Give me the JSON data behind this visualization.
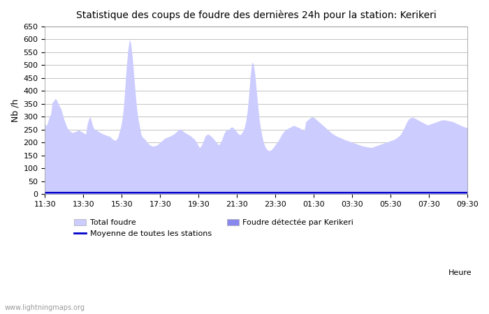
{
  "title": "Statistique des coups de foudre des dernières 24h pour la station: Kerikeri",
  "ylabel": "Nb /h",
  "xlabel": "Heure",
  "watermark": "www.lightningmaps.org",
  "ylim": [
    0,
    650
  ],
  "yticks": [
    0,
    50,
    100,
    150,
    200,
    250,
    300,
    350,
    400,
    450,
    500,
    550,
    600,
    650
  ],
  "x_labels": [
    "11:30",
    "13:30",
    "15:30",
    "17:30",
    "19:30",
    "21:30",
    "23:30",
    "01:30",
    "03:30",
    "05:30",
    "07:30",
    "09:30"
  ],
  "legend_total": "Total foudre",
  "legend_kerikeri": "Foudre détectée par Kerikeri",
  "legend_moyenne": "Moyenne de toutes les stations",
  "color_total": "#ccccff",
  "color_kerikeri": "#8888ee",
  "color_moyenne": "#0000cc",
  "background_color": "#ffffff",
  "grid_color": "#aaaaaa",
  "total_foudre": [
    270,
    265,
    280,
    300,
    310,
    355,
    360,
    370,
    365,
    350,
    340,
    330,
    310,
    290,
    275,
    260,
    250,
    245,
    240,
    238,
    240,
    242,
    245,
    248,
    245,
    242,
    238,
    235,
    232,
    270,
    290,
    300,
    280,
    260,
    250,
    248,
    245,
    242,
    238,
    235,
    232,
    230,
    228,
    225,
    225,
    220,
    215,
    210,
    208,
    210,
    220,
    240,
    260,
    290,
    340,
    420,
    500,
    560,
    600,
    580,
    530,
    460,
    390,
    330,
    290,
    260,
    230,
    220,
    215,
    210,
    200,
    195,
    190,
    188,
    185,
    186,
    188,
    190,
    195,
    200,
    205,
    210,
    215,
    218,
    220,
    222,
    225,
    228,
    230,
    235,
    240,
    245,
    250,
    252,
    248,
    242,
    238,
    235,
    232,
    228,
    225,
    220,
    215,
    210,
    200,
    190,
    180,
    185,
    195,
    210,
    225,
    230,
    232,
    228,
    224,
    218,
    212,
    205,
    198,
    190,
    195,
    205,
    220,
    235,
    245,
    248,
    250,
    255,
    260,
    258,
    252,
    245,
    238,
    232,
    230,
    235,
    245,
    260,
    285,
    325,
    390,
    460,
    510,
    505,
    470,
    410,
    350,
    295,
    255,
    225,
    200,
    185,
    175,
    170,
    168,
    170,
    175,
    182,
    190,
    198,
    205,
    215,
    225,
    235,
    242,
    248,
    252,
    255,
    258,
    260,
    265,
    265,
    263,
    260,
    258,
    255,
    252,
    248,
    245,
    280,
    285,
    290,
    295,
    298,
    298,
    295,
    290,
    285,
    280,
    275,
    270,
    265,
    260,
    255,
    250,
    245,
    240,
    235,
    232,
    228,
    225,
    222,
    220,
    218,
    215,
    212,
    210,
    208,
    206,
    204,
    202,
    200,
    198,
    196,
    194,
    192,
    190,
    188,
    186,
    185,
    184,
    183,
    182,
    181,
    180,
    182,
    184,
    186,
    188,
    190,
    192,
    194,
    196,
    198,
    200,
    202,
    204,
    206,
    208,
    210,
    213,
    216,
    220,
    225,
    230,
    240,
    250,
    262,
    275,
    285,
    292,
    295,
    297,
    296,
    293,
    290,
    287,
    284,
    281,
    278,
    275,
    272,
    269,
    268,
    270,
    272,
    274,
    276,
    278,
    280,
    282,
    284,
    286,
    287,
    287,
    286,
    285,
    284,
    283,
    282,
    280,
    278,
    275,
    272,
    270,
    267,
    264,
    262,
    260,
    258,
    256
  ]
}
